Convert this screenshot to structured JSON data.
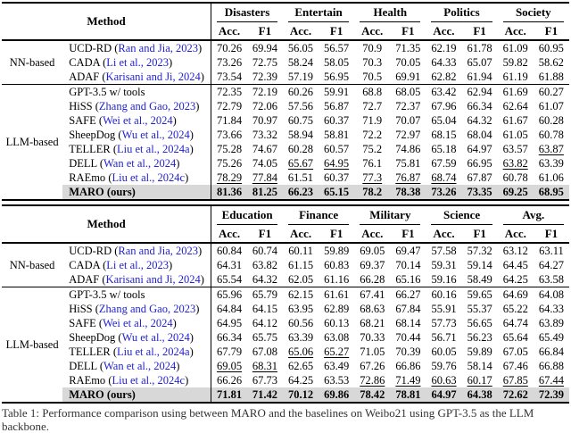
{
  "colors": {
    "citation_blue": "#2222cc",
    "highlight_gray": "#d8d8d8"
  },
  "caption": "Table 1: Performance comparison using between MARO and the baselines on Weibo21 using GPT-3.5 as the LLM backbone.",
  "tables": [
    {
      "method_label": "Method",
      "acc_label": "Acc.",
      "f1_label": "F1",
      "categories": [
        "Disasters",
        "Entertain",
        "Health",
        "Politics",
        "Society"
      ],
      "groups": [
        {
          "label": "NN-based",
          "rows": [
            {
              "name": "UCD-RD",
              "cite": "Ran and Jia, 2023",
              "vals": [
                "70.26",
                "69.94",
                "56.05",
                "56.57",
                "70.9",
                "71.35",
                "62.19",
                "61.78",
                "61.09",
                "60.95"
              ]
            },
            {
              "name": "CADA",
              "cite": "Li et al., 2023",
              "vals": [
                "73.26",
                "72.75",
                "58.24",
                "58.05",
                "70.3",
                "70.05",
                "64.33",
                "65.07",
                "59.82",
                "58.62"
              ]
            },
            {
              "name": "ADAF",
              "cite": "Karisani and Ji, 2024",
              "vals": [
                "73.54",
                "72.39",
                "57.19",
                "56.95",
                "70.5",
                "69.91",
                "62.82",
                "61.94",
                "61.19",
                "61.88"
              ]
            }
          ]
        },
        {
          "label": "LLM-based",
          "rows": [
            {
              "name": "GPT-3.5 w/ tools",
              "cite": null,
              "vals": [
                "72.35",
                "72.19",
                "60.26",
                "59.91",
                "68.8",
                "68.05",
                "63.42",
                "62.94",
                "61.69",
                "60.27"
              ]
            },
            {
              "name": "HiSS",
              "cite": "Zhang and Gao, 2023",
              "vals": [
                "72.79",
                "72.06",
                "57.56",
                "56.87",
                "72.7",
                "72.37",
                "67.96",
                "66.34",
                "62.64",
                "61.07"
              ]
            },
            {
              "name": "SAFE",
              "cite": "Wei et al., 2024",
              "vals": [
                "71.84",
                "70.97",
                "60.75",
                "60.37",
                "71.9",
                "70.07",
                "65.04",
                "64.32",
                "61.67",
                "60.28"
              ]
            },
            {
              "name": "SheepDog",
              "cite": "Wu et al., 2024",
              "vals": [
                "73.66",
                "73.32",
                "58.94",
                "58.81",
                "72.2",
                "72.97",
                "68.15",
                "68.04",
                "61.05",
                "60.78"
              ]
            },
            {
              "name": "TELLER",
              "cite": "Liu et al., 2024a",
              "vals": [
                "75.28",
                "74.67",
                "60.28",
                "60.57",
                "75.2",
                "74.86",
                "65.18",
                "64.97",
                "63.57",
                "63.87"
              ],
              "u": [
                9
              ]
            },
            {
              "name": "DELL",
              "cite": "Wan et al., 2024",
              "vals": [
                "75.26",
                "74.05",
                "65.67",
                "64.95",
                "76.1",
                "75.81",
                "67.59",
                "66.95",
                "63.82",
                "63.39"
              ],
              "u": [
                2,
                3,
                8
              ]
            },
            {
              "name": "RAEmo",
              "cite": "Liu et al., 2024c",
              "vals": [
                "78.29",
                "77.84",
                "61.51",
                "60.37",
                "77.3",
                "76.87",
                "68.74",
                "67.87",
                "60.78",
                "61.06"
              ],
              "u": [
                0,
                1,
                4,
                5,
                6
              ]
            },
            {
              "name": "MARO (ours)",
              "cite": null,
              "highlight": true,
              "vals": [
                "81.36",
                "81.25",
                "66.23",
                "65.15",
                "78.2",
                "78.38",
                "73.26",
                "73.35",
                "69.25",
                "68.95"
              ]
            }
          ]
        }
      ]
    },
    {
      "method_label": "Method",
      "acc_label": "Acc.",
      "f1_label": "F1",
      "categories": [
        "Education",
        "Finance",
        "Military",
        "Science",
        "Avg."
      ],
      "groups": [
        {
          "label": "NN-based",
          "rows": [
            {
              "name": "UCD-RD",
              "cite": "Ran and Jia, 2023",
              "vals": [
                "60.84",
                "60.74",
                "60.11",
                "59.89",
                "69.05",
                "69.47",
                "57.58",
                "57.32",
                "63.12",
                "63.11"
              ]
            },
            {
              "name": "CADA",
              "cite": "Li et al., 2023",
              "vals": [
                "64.31",
                "63.82",
                "61.15",
                "60.83",
                "69.37",
                "70.14",
                "59.31",
                "59.14",
                "64.45",
                "64.27"
              ]
            },
            {
              "name": "ADAF",
              "cite": "Karisani and Ji, 2024",
              "vals": [
                "65.54",
                "64.32",
                "62.05",
                "61.16",
                "66.28",
                "65.16",
                "59.16",
                "58.49",
                "64.25",
                "63.58"
              ]
            }
          ]
        },
        {
          "label": "LLM-based",
          "rows": [
            {
              "name": "GPT-3.5 w/ tools",
              "cite": null,
              "vals": [
                "65.96",
                "65.79",
                "62.15",
                "61.61",
                "67.41",
                "66.27",
                "60.16",
                "59.65",
                "64.69",
                "64.08"
              ]
            },
            {
              "name": "HiSS",
              "cite": "Zhang and Gao, 2023",
              "vals": [
                "64.84",
                "64.15",
                "63.95",
                "62.89",
                "68.63",
                "67.84",
                "55.91",
                "55.37",
                "65.22",
                "64.33"
              ]
            },
            {
              "name": "SAFE",
              "cite": "Wei et al., 2024",
              "vals": [
                "64.95",
                "64.12",
                "60.56",
                "60.13",
                "68.21",
                "68.14",
                "57.73",
                "56.65",
                "64.74",
                "63.89"
              ]
            },
            {
              "name": "SheepDog",
              "cite": "Wu et al., 2024",
              "vals": [
                "66.34",
                "65.75",
                "63.39",
                "63.08",
                "70.33",
                "70.44",
                "56.71",
                "56.23",
                "65.64",
                "65.49"
              ]
            },
            {
              "name": "TELLER",
              "cite": "Liu et al., 2024a",
              "vals": [
                "67.79",
                "67.08",
                "65.06",
                "65.27",
                "71.05",
                "70.39",
                "60.05",
                "59.89",
                "67.05",
                "66.84"
              ],
              "u": [
                2,
                3
              ]
            },
            {
              "name": "DELL",
              "cite": "Wan et al., 2024",
              "vals": [
                "69.05",
                "68.31",
                "62.65",
                "63.49",
                "67.26",
                "66.86",
                "59.76",
                "58.14",
                "67.46",
                "66.88"
              ],
              "u": [
                0,
                1
              ]
            },
            {
              "name": "RAEmo",
              "cite": "Liu et al., 2024c",
              "vals": [
                "66.26",
                "67.73",
                "64.25",
                "63.53",
                "72.86",
                "71.49",
                "60.63",
                "60.17",
                "67.85",
                "67.44"
              ],
              "u": [
                4,
                5,
                6,
                7,
                8,
                9
              ]
            },
            {
              "name": "MARO (ours)",
              "cite": null,
              "highlight": true,
              "vals": [
                "71.81",
                "71.42",
                "70.12",
                "69.86",
                "78.42",
                "78.81",
                "64.97",
                "64.38",
                "72.62",
                "72.39"
              ]
            }
          ]
        }
      ]
    }
  ]
}
